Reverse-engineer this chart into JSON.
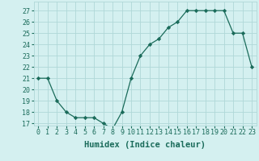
{
  "x": [
    0,
    1,
    2,
    3,
    4,
    5,
    6,
    7,
    8,
    9,
    10,
    11,
    12,
    13,
    14,
    15,
    16,
    17,
    18,
    19,
    20,
    21,
    22,
    23
  ],
  "y": [
    21,
    21,
    19,
    18,
    17.5,
    17.5,
    17.5,
    17,
    16.5,
    18,
    21,
    23,
    24,
    24.5,
    25.5,
    26,
    27,
    27,
    27,
    27,
    27,
    25,
    25,
    22
  ],
  "xlabel": "Humidex (Indice chaleur)",
  "xlim": [
    -0.5,
    23.5
  ],
  "ylim": [
    16.8,
    27.8
  ],
  "yticks": [
    17,
    18,
    19,
    20,
    21,
    22,
    23,
    24,
    25,
    26,
    27
  ],
  "xticks": [
    0,
    1,
    2,
    3,
    4,
    5,
    6,
    7,
    8,
    9,
    10,
    11,
    12,
    13,
    14,
    15,
    16,
    17,
    18,
    19,
    20,
    21,
    22,
    23
  ],
  "line_color": "#1a6b5a",
  "marker": "D",
  "marker_size": 2.2,
  "bg_color": "#d4f0f0",
  "grid_color": "#b0d8d8",
  "label_color": "#1a6b5a",
  "tick_label_color": "#1a6b5a",
  "xlabel_fontsize": 7.5,
  "tick_fontsize": 6
}
